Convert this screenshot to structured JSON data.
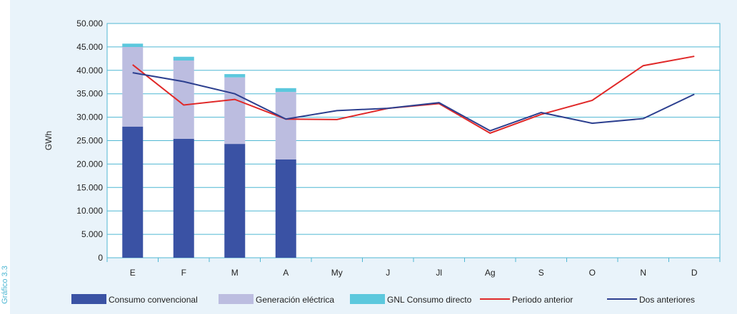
{
  "side_label": "Gráfico 3.3",
  "colors": {
    "background": "#e9f3fa",
    "plot_bg": "#ffffff",
    "grid": "#4fb7d3",
    "consumo_convencional": "#3a52a4",
    "generacion_electrica": "#bcbde0",
    "gnl_consumo_directo": "#5cc8dd",
    "periodo_anterior": "#e02828",
    "dos_anteriores": "#2c3f8f"
  },
  "chart_data": {
    "type": "bar",
    "ylabel": "GWh",
    "xlabel": "",
    "ylim": [
      0,
      50000
    ],
    "yticks": [
      "0",
      "5.000",
      "10.000",
      "15.000",
      "20.000",
      "25.000",
      "30.000",
      "35.000",
      "40.000",
      "45.000",
      "50.000"
    ],
    "categories": [
      "E",
      "F",
      "M",
      "A",
      "My",
      "J",
      "Jl",
      "Ag",
      "S",
      "O",
      "N",
      "D"
    ],
    "grid": true,
    "legend_position": "bottom",
    "stacked_bars": [
      {
        "name": "Consumo convencional",
        "values": [
          28000,
          25400,
          24300,
          21000,
          null,
          null,
          null,
          null,
          null,
          null,
          null,
          null
        ]
      },
      {
        "name": "Generación eléctrica",
        "values": [
          17000,
          16700,
          14200,
          14400,
          null,
          null,
          null,
          null,
          null,
          null,
          null,
          null
        ]
      },
      {
        "name": "GNL Consumo directo",
        "values": [
          700,
          800,
          700,
          800,
          null,
          null,
          null,
          null,
          null,
          null,
          null,
          null
        ]
      }
    ],
    "lines": [
      {
        "name": "Periodo anterior",
        "values": [
          41200,
          32600,
          33800,
          29600,
          29500,
          31900,
          32900,
          26600,
          30600,
          33600,
          41000,
          43000
        ]
      },
      {
        "name": "Dos anteriores",
        "values": [
          39500,
          37600,
          35000,
          29600,
          31400,
          31900,
          33100,
          27100,
          31000,
          28700,
          29700,
          34900
        ]
      }
    ]
  }
}
